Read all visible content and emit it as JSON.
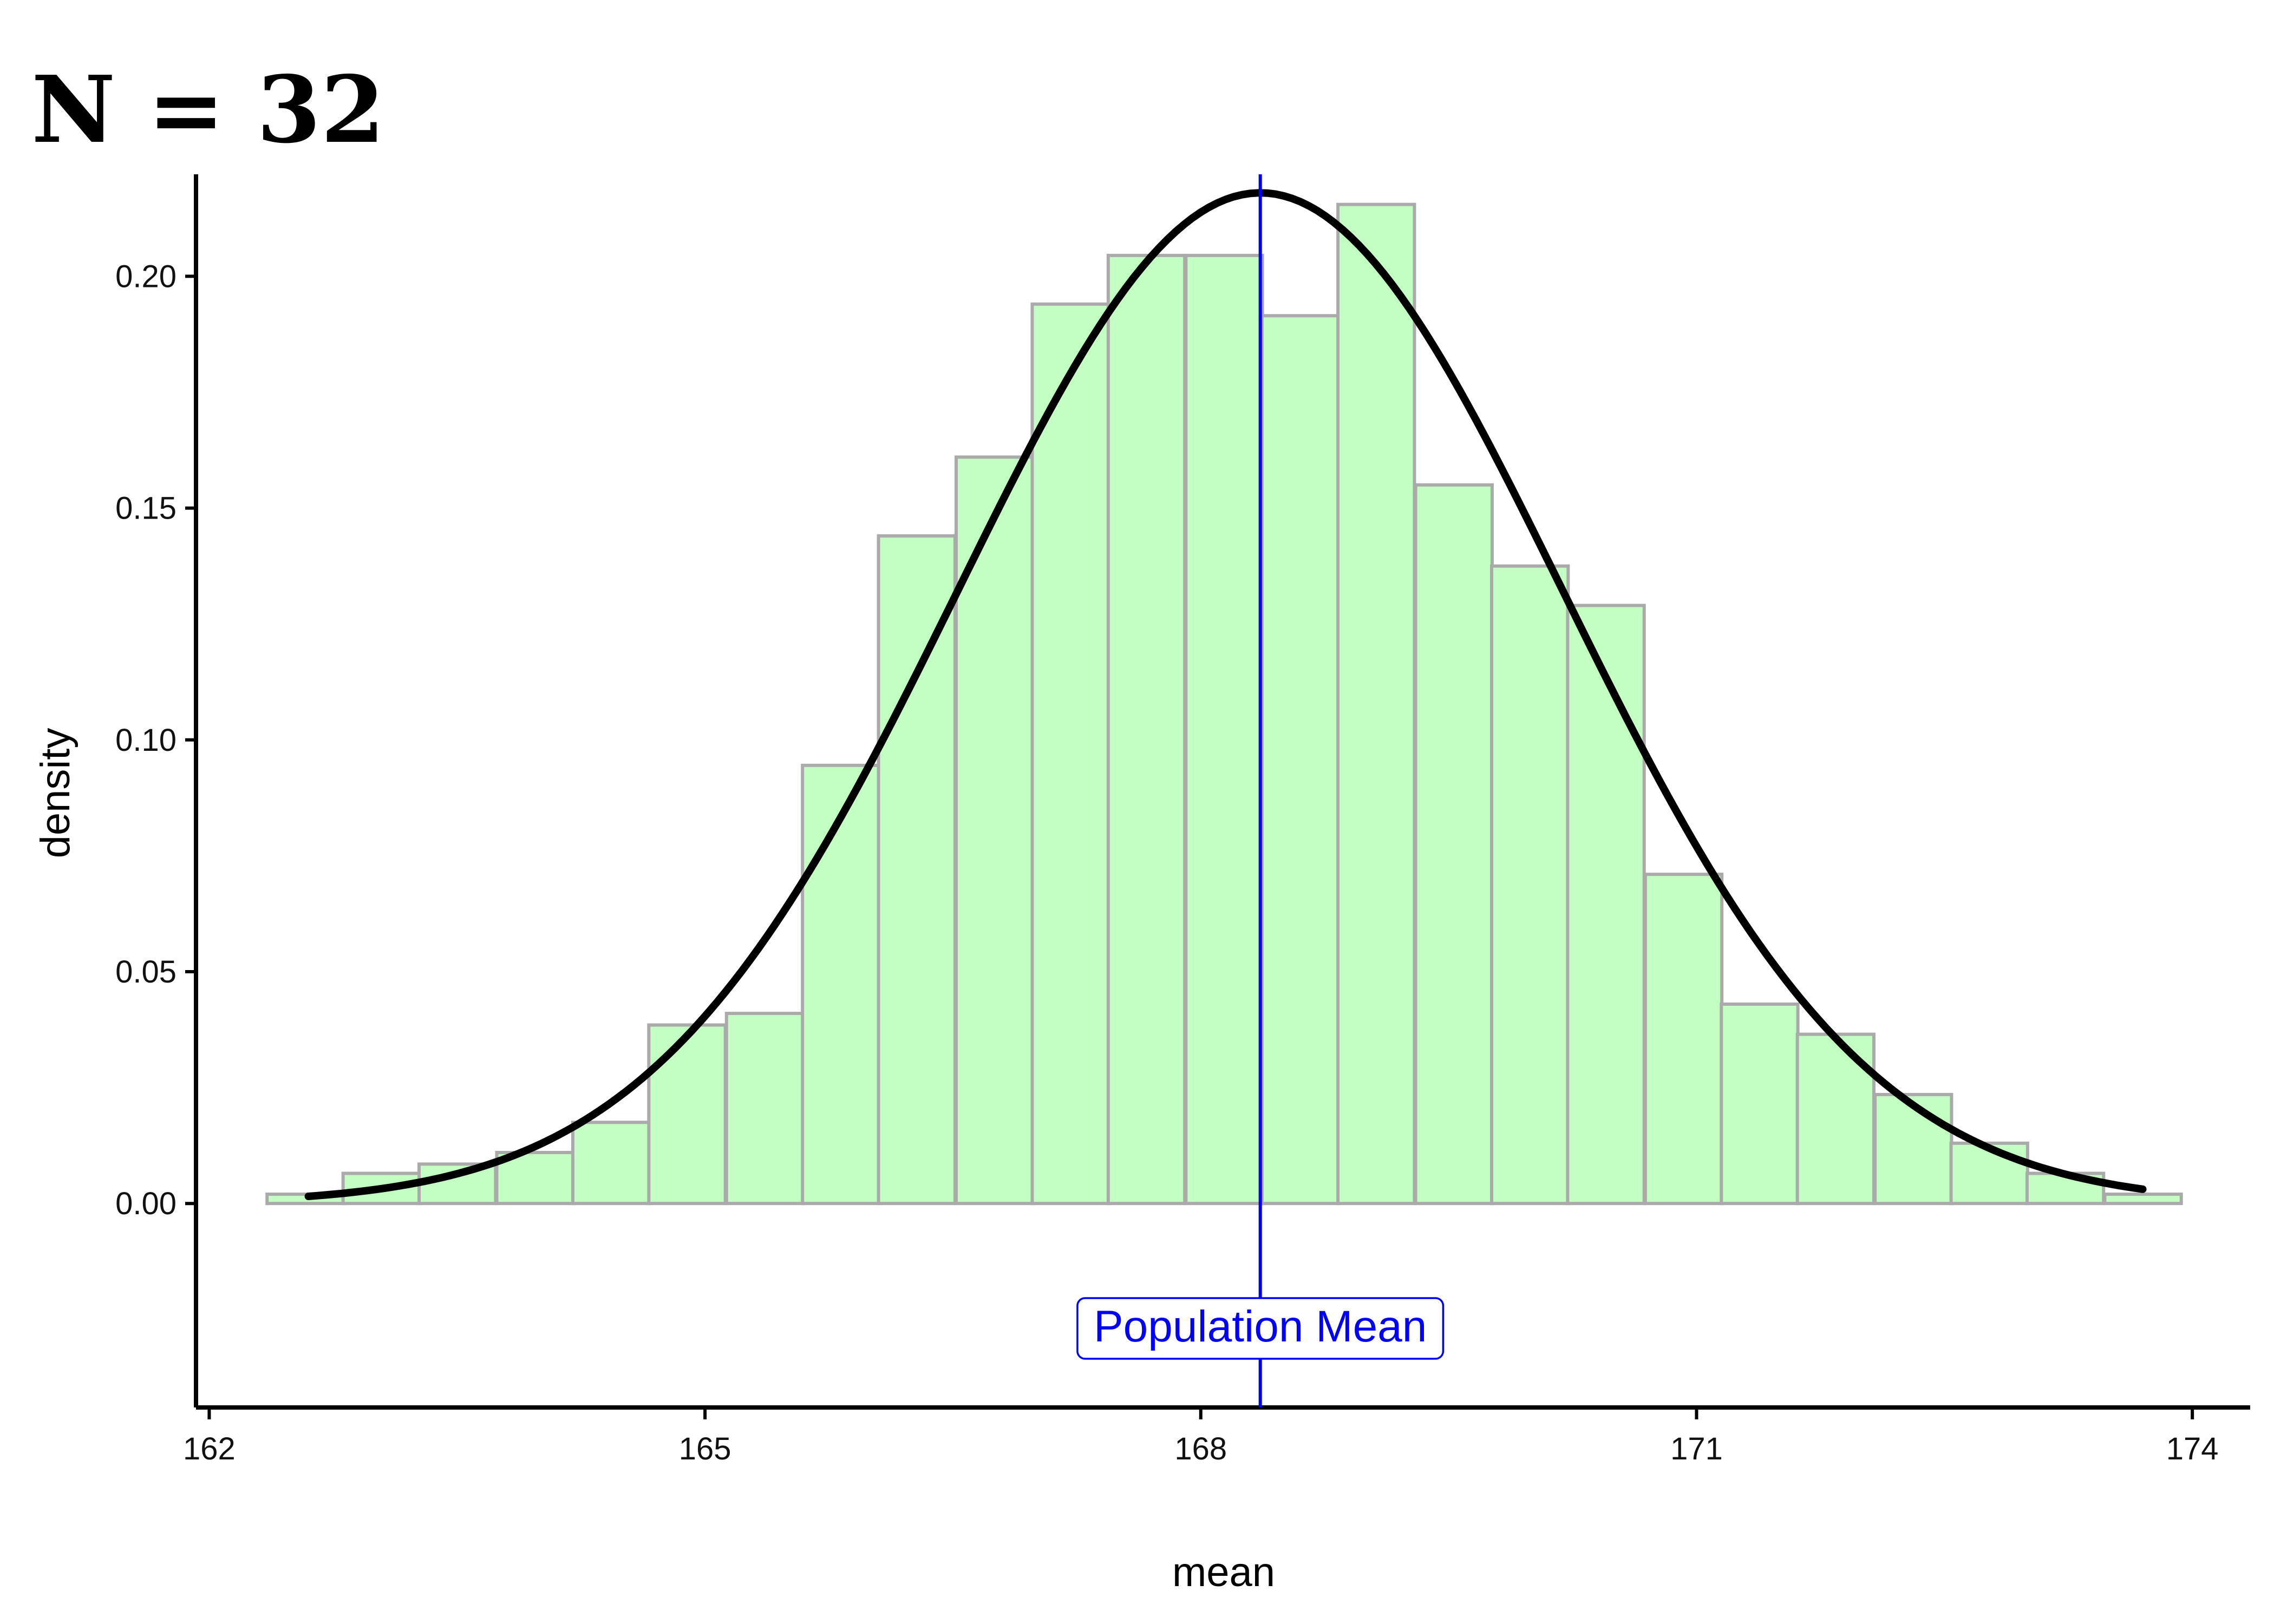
{
  "chart_data": {
    "type": "bar",
    "title": "N = 32",
    "xlabel": "mean",
    "ylabel": "density",
    "xlim": [
      161.92,
      174.35
    ],
    "ylim": [
      -0.044,
      0.222
    ],
    "x_ticks": [
      162,
      165,
      168,
      171,
      174
    ],
    "y_ticks": [
      0.0,
      0.05,
      0.1,
      0.15,
      0.2
    ],
    "y_tick_labels": [
      "0.00",
      "0.05",
      "0.10",
      "0.15",
      "0.20"
    ],
    "grid": false,
    "legend": "none",
    "histogram": {
      "bin_width": 0.463,
      "bins": [
        {
          "x_start": 162.35,
          "value": 0.002
        },
        {
          "x_start": 162.81,
          "value": 0.0065
        },
        {
          "x_start": 163.27,
          "value": 0.0085
        },
        {
          "x_start": 163.74,
          "value": 0.011
        },
        {
          "x_start": 164.2,
          "value": 0.0175
        },
        {
          "x_start": 164.66,
          "value": 0.0385
        },
        {
          "x_start": 165.13,
          "value": 0.041
        },
        {
          "x_start": 165.59,
          "value": 0.0945
        },
        {
          "x_start": 166.05,
          "value": 0.144
        },
        {
          "x_start": 166.52,
          "value": 0.161
        },
        {
          "x_start": 166.98,
          "value": 0.194
        },
        {
          "x_start": 167.44,
          "value": 0.2045
        },
        {
          "x_start": 167.91,
          "value": 0.2045
        },
        {
          "x_start": 168.37,
          "value": 0.1915
        },
        {
          "x_start": 168.83,
          "value": 0.2155
        },
        {
          "x_start": 169.3,
          "value": 0.155
        },
        {
          "x_start": 169.76,
          "value": 0.1375
        },
        {
          "x_start": 170.22,
          "value": 0.129
        },
        {
          "x_start": 170.69,
          "value": 0.071
        },
        {
          "x_start": 171.15,
          "value": 0.043
        },
        {
          "x_start": 171.61,
          "value": 0.0365
        },
        {
          "x_start": 172.08,
          "value": 0.0235
        },
        {
          "x_start": 172.54,
          "value": 0.013
        },
        {
          "x_start": 173.0,
          "value": 0.0065
        },
        {
          "x_start": 173.47,
          "value": 0.002
        }
      ]
    },
    "density_curve": {
      "type": "normal",
      "mean": 168.36,
      "sd": 1.83,
      "x_range": [
        162.6,
        173.7
      ]
    },
    "reference_line": {
      "x": 168.36,
      "label": "Population Mean"
    },
    "colors": {
      "bar_fill": "#c3ffc3",
      "bar_stroke": "#aaaaaa",
      "curve": "#000000",
      "reference_line": "#0000ff"
    }
  }
}
